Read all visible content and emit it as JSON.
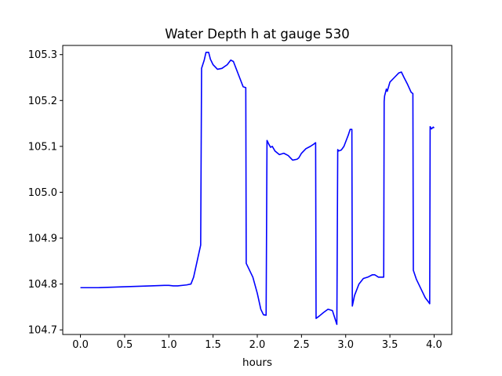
{
  "chart_data": {
    "type": "line",
    "title": "Water Depth h at gauge 530",
    "xlabel": "hours",
    "ylabel": "",
    "xlim": [
      -0.2,
      4.2
    ],
    "ylim": [
      104.69,
      105.32
    ],
    "x_ticks": [
      0.0,
      0.5,
      1.0,
      1.5,
      2.0,
      2.5,
      3.0,
      3.5,
      4.0
    ],
    "x_tick_labels": [
      "0.0",
      "0.5",
      "1.0",
      "1.5",
      "2.0",
      "2.5",
      "3.0",
      "3.5",
      "4.0"
    ],
    "y_ticks": [
      104.7,
      104.8,
      104.9,
      105.0,
      105.1,
      105.2,
      105.3
    ],
    "y_tick_labels": [
      "104.7",
      "104.8",
      "104.9",
      "105.0",
      "105.1",
      "105.2",
      "105.3"
    ],
    "grid": false,
    "legend": "none",
    "series": [
      {
        "color": "#0000ff",
        "x": [
          0.0,
          0.2,
          0.5,
          0.8,
          0.95,
          1.0,
          1.05,
          1.1,
          1.2,
          1.25,
          1.28,
          1.32,
          1.36,
          1.37,
          1.4,
          1.42,
          1.45,
          1.47,
          1.5,
          1.55,
          1.6,
          1.66,
          1.7,
          1.73,
          1.76,
          1.8,
          1.84,
          1.87,
          1.875,
          1.9,
          1.95,
          2.0,
          2.04,
          2.07,
          2.1,
          2.11,
          2.13,
          2.15,
          2.17,
          2.2,
          2.25,
          2.3,
          2.35,
          2.4,
          2.45,
          2.47,
          2.5,
          2.55,
          2.6,
          2.64,
          2.66,
          2.665,
          2.7,
          2.75,
          2.8,
          2.85,
          2.9,
          2.91,
          2.92,
          2.95,
          2.98,
          3.0,
          3.03,
          3.05,
          3.07,
          3.075,
          3.1,
          3.15,
          3.2,
          3.25,
          3.3,
          3.33,
          3.37,
          3.4,
          3.43,
          3.435,
          3.44,
          3.46,
          3.47,
          3.5,
          3.55,
          3.6,
          3.63,
          3.66,
          3.7,
          3.74,
          3.76,
          3.765,
          3.8,
          3.85,
          3.9,
          3.94,
          3.95,
          3.955,
          3.97,
          3.99,
          4.0
        ],
        "y": [
          104.792,
          104.792,
          104.794,
          104.796,
          104.797,
          104.797,
          104.796,
          104.796,
          104.798,
          104.8,
          104.815,
          104.85,
          104.885,
          105.27,
          105.288,
          105.305,
          105.305,
          105.29,
          105.278,
          105.268,
          105.27,
          105.278,
          105.288,
          105.285,
          105.27,
          105.25,
          105.23,
          105.228,
          104.845,
          104.835,
          104.815,
          104.78,
          104.745,
          104.733,
          104.732,
          105.113,
          105.105,
          105.098,
          105.1,
          105.09,
          105.082,
          105.085,
          105.08,
          105.07,
          105.072,
          105.075,
          105.085,
          105.095,
          105.1,
          105.105,
          105.108,
          104.725,
          104.73,
          104.738,
          104.745,
          104.742,
          104.712,
          105.093,
          105.09,
          105.092,
          105.1,
          105.11,
          105.125,
          105.137,
          105.137,
          104.752,
          104.775,
          104.8,
          104.812,
          104.815,
          104.82,
          104.82,
          104.815,
          104.815,
          104.815,
          105.198,
          105.21,
          105.225,
          105.22,
          105.24,
          105.25,
          105.26,
          105.262,
          105.25,
          105.235,
          105.218,
          105.215,
          104.83,
          104.81,
          104.79,
          104.77,
          104.76,
          104.757,
          105.143,
          105.138,
          105.142,
          105.14
        ]
      }
    ]
  }
}
